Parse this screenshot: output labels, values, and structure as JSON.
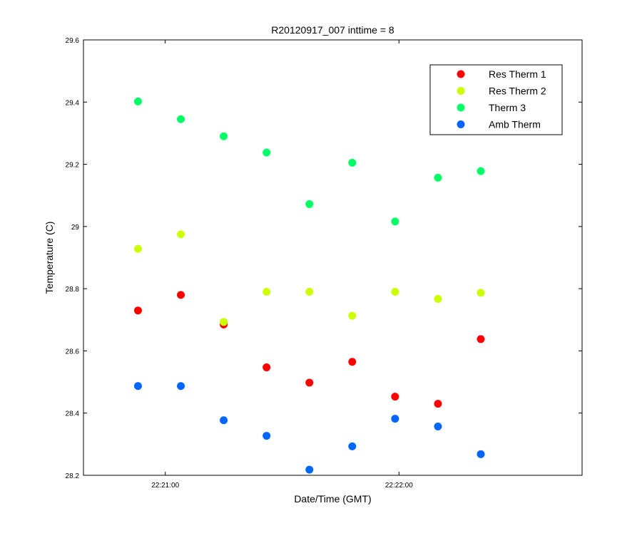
{
  "chart_data": {
    "type": "scatter",
    "title": "R20120917_007 inttime = 8",
    "xlabel": "Date/Time (GMT)",
    "ylabel": "Temperature (C)",
    "xlim": [
      "22:20:39",
      "22:22:47"
    ],
    "ylim": [
      28.2,
      29.6
    ],
    "x_ticks": [
      "22:21:00",
      "22:22:00"
    ],
    "y_ticks": [
      "28.2",
      "28.4",
      "28.6",
      "28.8",
      "29",
      "29.2",
      "29.4",
      "29.6"
    ],
    "grid": false,
    "legend_position": "top-right",
    "x": [
      "22:20:53",
      "22:21:04",
      "22:21:15",
      "22:21:26",
      "22:21:37",
      "22:21:48",
      "22:21:59",
      "22:22:10",
      "22:22:21"
    ],
    "series": [
      {
        "name": "Res Therm 1",
        "color": "#ff0000",
        "values": [
          28.73,
          28.78,
          28.685,
          28.547,
          28.498,
          28.565,
          28.453,
          28.43,
          28.638
        ]
      },
      {
        "name": "Res Therm 2",
        "color": "#ccff00",
        "values": [
          28.928,
          28.975,
          28.693,
          28.79,
          28.79,
          28.713,
          28.79,
          28.767,
          28.787
        ]
      },
      {
        "name": "Therm 3",
        "color": "#00ff66",
        "values": [
          29.402,
          29.345,
          29.29,
          29.238,
          29.072,
          29.205,
          29.016,
          29.157,
          29.178
        ]
      },
      {
        "name": "Amb Therm",
        "color": "#0066ff",
        "values": [
          28.487,
          28.487,
          28.377,
          28.327,
          28.218,
          28.293,
          28.382,
          28.357,
          28.268
        ]
      }
    ]
  }
}
